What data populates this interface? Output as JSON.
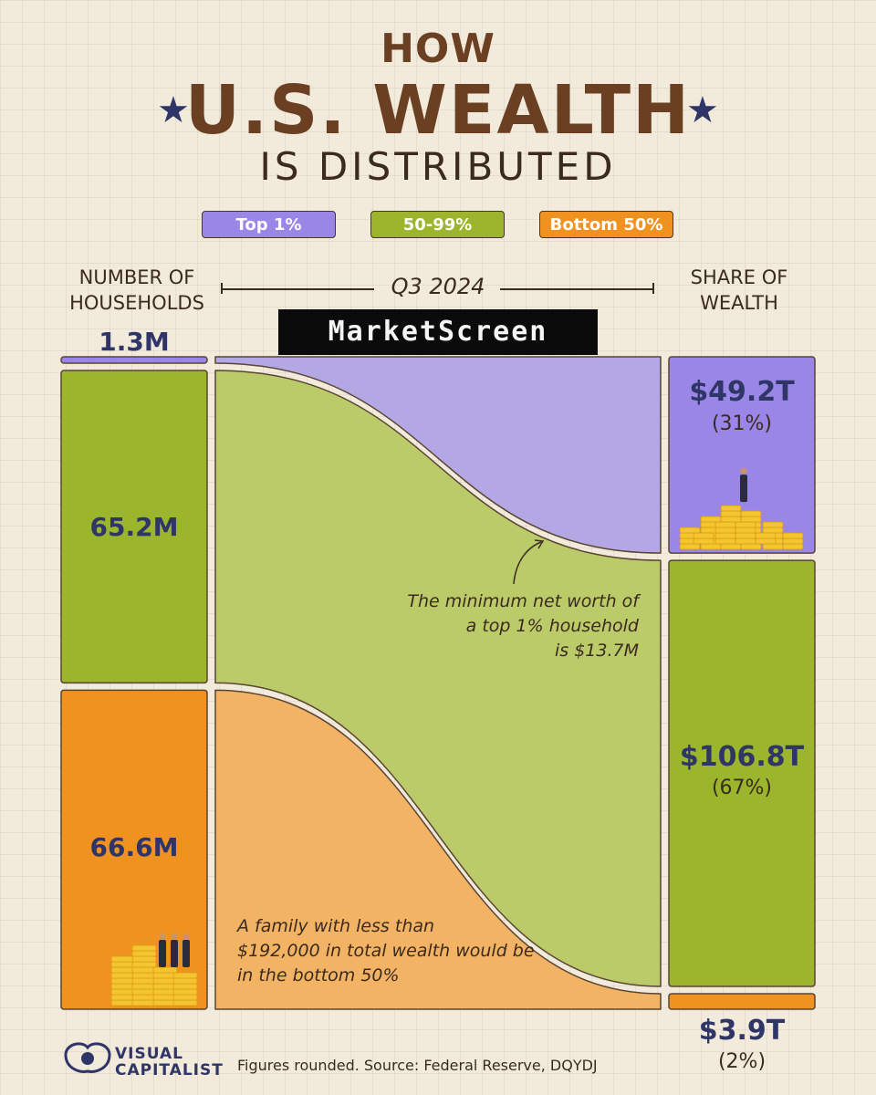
{
  "title": {
    "line1": "HOW",
    "line2": "U.S. WEALTH",
    "line3": "IS DISTRIBUTED",
    "star_left": "★",
    "star_right": "★"
  },
  "legend": [
    {
      "label": "Top 1%",
      "color": "#9a86e6"
    },
    {
      "label": "50-99%",
      "color": "#9bb52c"
    },
    {
      "label": "Bottom 50%",
      "color": "#f0921f"
    }
  ],
  "headers": {
    "households_line1": "NUMBER OF",
    "households_line2": "HOUSEHOLDS",
    "period": "Q3 2024",
    "wealth_line1": "SHARE OF",
    "wealth_line2": "WEALTH"
  },
  "watermark": "MarketScreen",
  "colors": {
    "top_solid": "#9a86e6",
    "top_flow": "#b4a8e4",
    "mid_solid": "#9bb52c",
    "mid_flow": "#bccb6a",
    "bottom_solid": "#f0921f",
    "bottom_flow": "#f3b364",
    "coin": "#f4c531",
    "coin_dark": "#d99f10",
    "person": "#2a2b3d",
    "border": "#5a4433"
  },
  "chart_data": {
    "type": "sankey",
    "period": "Q3 2024",
    "groups": [
      {
        "name": "Top 1%",
        "households_label": "1.3M",
        "households_millions": 1.3,
        "wealth_label": "$49.2T",
        "wealth_trillions": 49.2,
        "share_label": "(31%)",
        "share_pct": 31
      },
      {
        "name": "50-99%",
        "households_label": "65.2M",
        "households_millions": 65.2,
        "wealth_label": "$106.8T",
        "wealth_trillions": 106.8,
        "share_label": "(67%)",
        "share_pct": 67
      },
      {
        "name": "Bottom 50%",
        "households_label": "66.6M",
        "households_millions": 66.6,
        "wealth_label": "$3.9T",
        "wealth_trillions": 3.9,
        "share_label": "(2%)",
        "share_pct": 2
      }
    ],
    "annotations": {
      "top1_threshold": [
        "The minimum net worth of",
        "a top 1% household",
        "is $13.7M"
      ],
      "bottom50_threshold": [
        "A family with less than",
        "$192,000 in total wealth would be",
        "in the bottom 50%"
      ]
    }
  },
  "footer": {
    "logo_line1": "VISUAL",
    "logo_line2": "CAPITALIST",
    "source": "Figures rounded. Source: Federal Reserve, DQYDJ"
  }
}
